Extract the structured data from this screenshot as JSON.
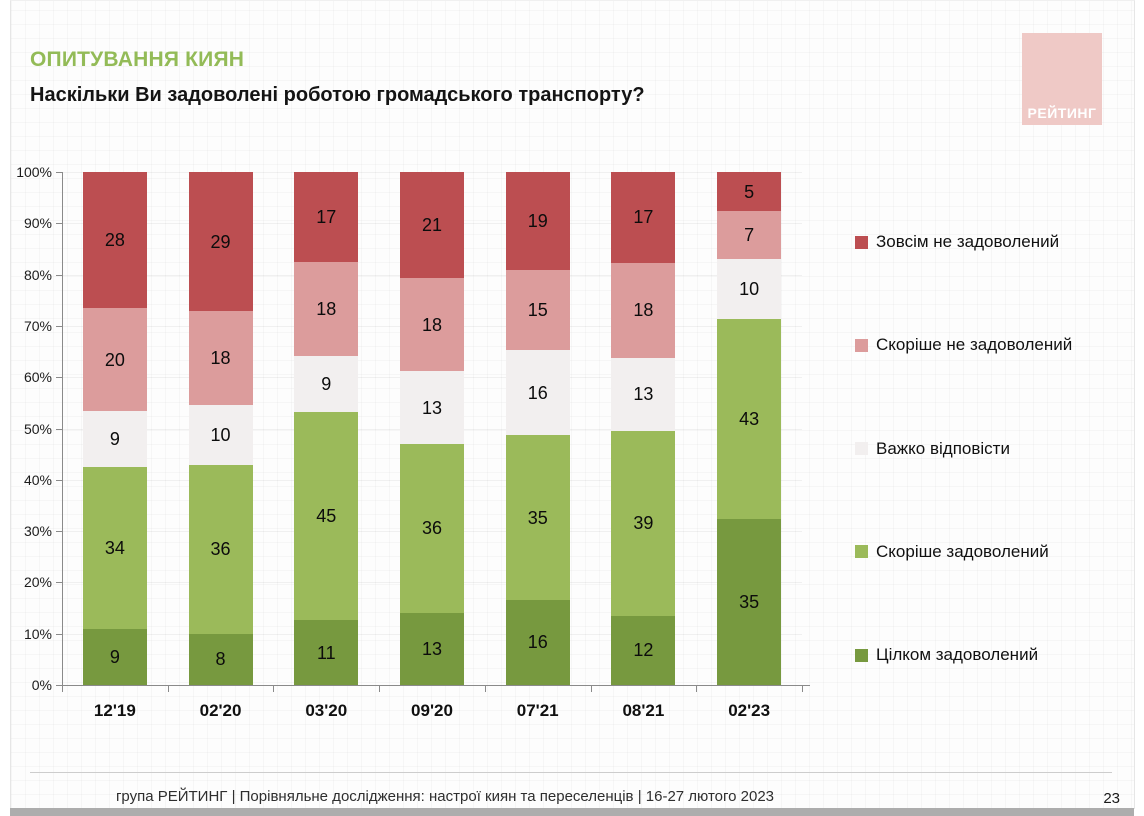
{
  "header": {
    "title": "ОПИТУВАННЯ КИЯН",
    "question": "Наскільки Ви задоволені роботою громадського транспорту?"
  },
  "logo": {
    "text": "РЕЙТИНГ",
    "bg_color": "#EFC9C6"
  },
  "chart_data": {
    "type": "bar",
    "variant": "stacked-100-percent",
    "title": "Наскільки Ви задоволені роботою громадського транспорту?",
    "categories": [
      "12'19",
      "02'20",
      "03'20",
      "09'20",
      "07'21",
      "08'21",
      "02'23"
    ],
    "series": [
      {
        "name": "Цілком задоволений",
        "color": "#77993F",
        "values": [
          9,
          8,
          11,
          13,
          16,
          12,
          35
        ]
      },
      {
        "name": "Скоріше задоволений",
        "color": "#9BBA5A",
        "values": [
          34,
          36,
          45,
          36,
          35,
          39,
          43
        ]
      },
      {
        "name": "Важко відповісти",
        "color": "#F2EFEF",
        "values": [
          9,
          10,
          9,
          13,
          16,
          13,
          10
        ]
      },
      {
        "name": "Скоріше не задоволений",
        "color": "#DC9C9C",
        "values": [
          20,
          18,
          18,
          18,
          15,
          18,
          7
        ]
      },
      {
        "name": "Зовсім не задоволений",
        "color": "#BC4E51",
        "values": [
          28,
          29,
          17,
          21,
          19,
          17,
          5
        ]
      }
    ],
    "series_order": "bottom-to-top",
    "y_ticks": [
      "0%",
      "10%",
      "20%",
      "30%",
      "40%",
      "50%",
      "60%",
      "70%",
      "80%",
      "90%",
      "100%"
    ],
    "ylim": [
      0,
      100
    ],
    "grid": true,
    "legend_position": "right",
    "legend_top_to_bottom": [
      "Зовсім не задоволений",
      "Скоріше не задоволений",
      "Важко відповісти",
      "Скоріше задоволений",
      "Цілком задоволений"
    ]
  },
  "footer": {
    "source": "група РЕЙТИНГ | Порівняльне дослідження: настрої киян та переселенців | 16-27 лютого 2023",
    "page": "23"
  }
}
